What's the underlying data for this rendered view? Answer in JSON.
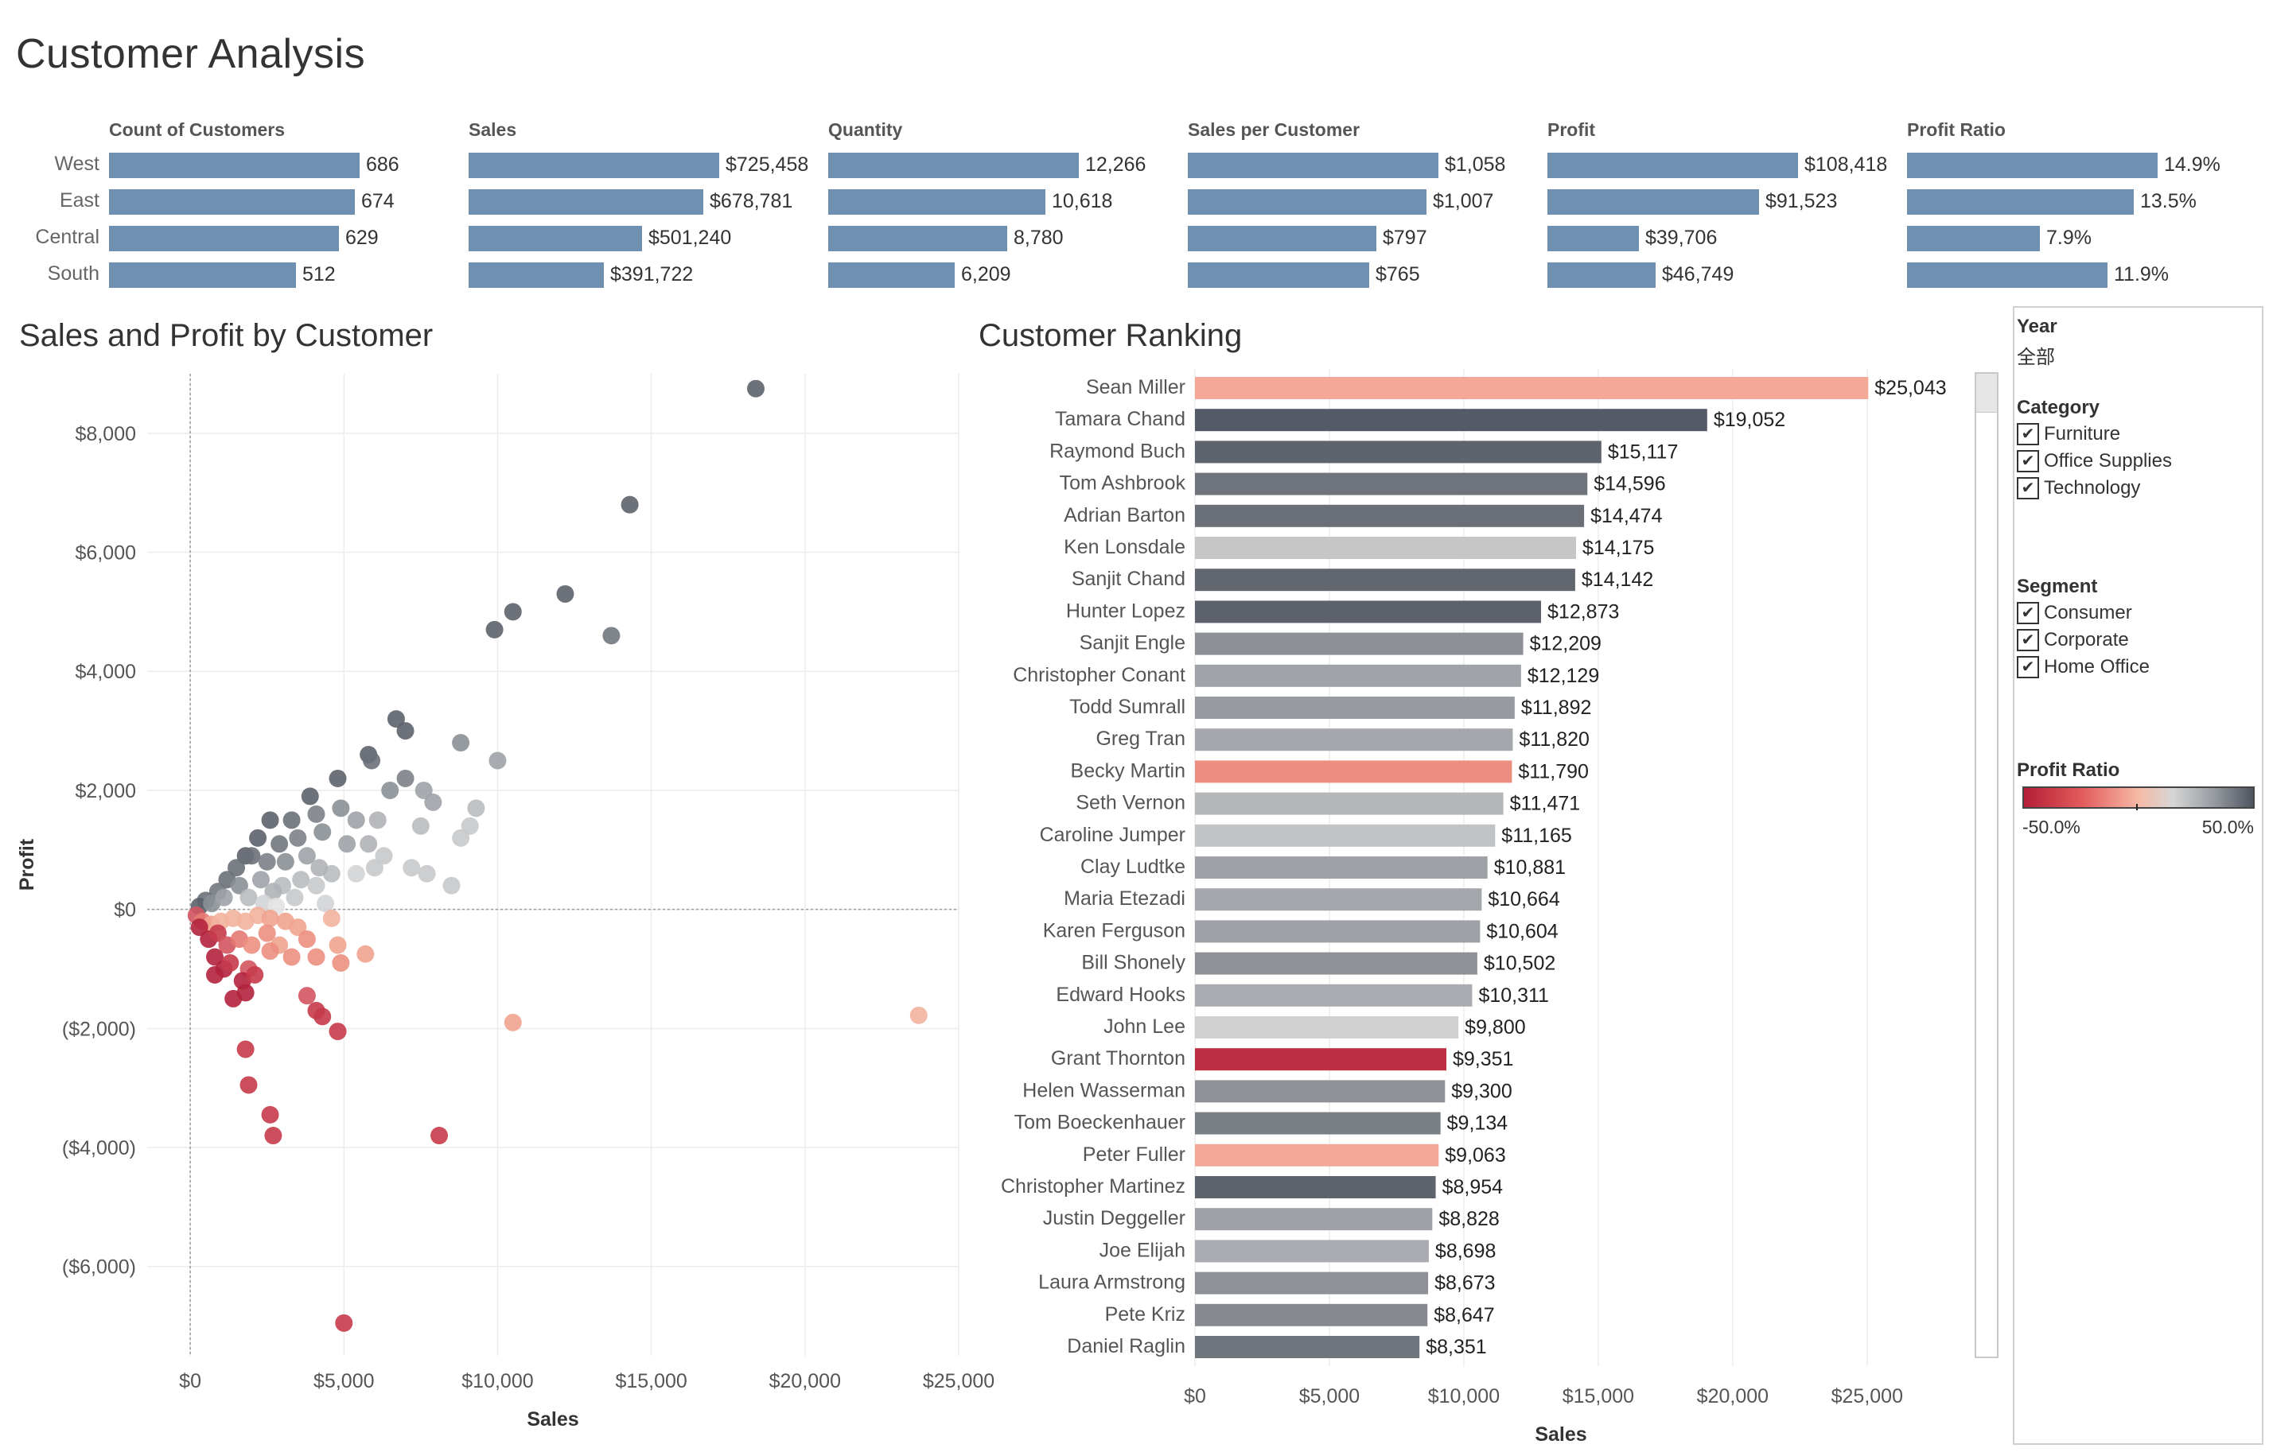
{
  "title": "Customer Analysis",
  "kpis": {
    "regions": [
      "West",
      "East",
      "Central",
      "South"
    ],
    "columns": [
      {
        "name": "Count of Customers",
        "values": [
          686,
          674,
          629,
          512
        ],
        "labels": [
          "686",
          "674",
          "629",
          "512"
        ]
      },
      {
        "name": "Sales",
        "values": [
          725458,
          678781,
          501240,
          391722
        ],
        "labels": [
          "$725,458",
          "$678,781",
          "$501,240",
          "$391,722"
        ]
      },
      {
        "name": "Quantity",
        "values": [
          12266,
          10618,
          8780,
          6209
        ],
        "labels": [
          "12,266",
          "10,618",
          "8,780",
          "6,209"
        ]
      },
      {
        "name": "Sales per Customer",
        "values": [
          1058,
          1007,
          797,
          765
        ],
        "labels": [
          "$1,058",
          "$1,007",
          "$797",
          "$765"
        ]
      },
      {
        "name": "Profit",
        "values": [
          108418,
          91523,
          39706,
          46749
        ],
        "labels": [
          "$108,418",
          "$91,523",
          "$39,706",
          "$46,749"
        ]
      },
      {
        "name": "Profit Ratio",
        "values": [
          14.9,
          13.5,
          7.9,
          11.9
        ],
        "labels": [
          "14.9%",
          "13.5%",
          "7.9%",
          "11.9%"
        ]
      }
    ],
    "bar_color": "#7090b2"
  },
  "scatter": {
    "title": "Sales and Profit by Customer",
    "xlabel": "Sales",
    "ylabel": "Profit",
    "x_ticks": [
      "$0",
      "$5,000",
      "$10,000",
      "$15,000",
      "$20,000",
      "$25,000"
    ],
    "y_ticks": [
      "$8,000",
      "$6,000",
      "$4,000",
      "$2,000",
      "$0",
      "($2,000)",
      "($4,000)",
      "($6,000)"
    ]
  },
  "ranking": {
    "title": "Customer Ranking",
    "xlabel": "Sales",
    "x_ticks": [
      "$0",
      "$5,000",
      "$10,000",
      "$15,000",
      "$20,000",
      "$25,000"
    ]
  },
  "filters": {
    "year": {
      "label": "Year",
      "value": "全部"
    },
    "category": {
      "label": "Category",
      "options": [
        "Furniture",
        "Office Supplies",
        "Technology"
      ]
    },
    "segment": {
      "label": "Segment",
      "options": [
        "Consumer",
        "Corporate",
        "Home Office"
      ]
    },
    "legend": {
      "label": "Profit Ratio",
      "min": "-50.0%",
      "max": "50.0%"
    }
  },
  "chart_data": [
    {
      "type": "scatter",
      "title": "Sales and Profit by Customer",
      "xlabel": "Sales",
      "ylabel": "Profit",
      "xlim": [
        -1400,
        25000
      ],
      "ylim": [
        -7500,
        9000
      ],
      "color_encoding": "Profit Ratio (-50% to 50%)",
      "points": [
        {
          "x": 18400,
          "y": 8750,
          "c": "#5c626b"
        },
        {
          "x": 14300,
          "y": 6800,
          "c": "#5c626b"
        },
        {
          "x": 10500,
          "y": 5000,
          "c": "#5c626b"
        },
        {
          "x": 12200,
          "y": 5300,
          "c": "#5c626b"
        },
        {
          "x": 9900,
          "y": 4700,
          "c": "#5c626b"
        },
        {
          "x": 13700,
          "y": 4600,
          "c": "#727880"
        },
        {
          "x": 6700,
          "y": 3200,
          "c": "#5c626b"
        },
        {
          "x": 7000,
          "y": 3000,
          "c": "#5c626b"
        },
        {
          "x": 8800,
          "y": 2800,
          "c": "#8b9096"
        },
        {
          "x": 5800,
          "y": 2600,
          "c": "#5c626b"
        },
        {
          "x": 5900,
          "y": 2500,
          "c": "#6b7078"
        },
        {
          "x": 10000,
          "y": 2500,
          "c": "#9fa3a8"
        },
        {
          "x": 4800,
          "y": 2200,
          "c": "#5c626b"
        },
        {
          "x": 7000,
          "y": 2200,
          "c": "#7d8288"
        },
        {
          "x": 6500,
          "y": 2000,
          "c": "#8b9096"
        },
        {
          "x": 7600,
          "y": 2000,
          "c": "#9fa3a8"
        },
        {
          "x": 7900,
          "y": 1800,
          "c": "#9fa3a8"
        },
        {
          "x": 9300,
          "y": 1700,
          "c": "#b9bcbf"
        },
        {
          "x": 3900,
          "y": 1900,
          "c": "#5c626b"
        },
        {
          "x": 2600,
          "y": 1500,
          "c": "#5c626b"
        },
        {
          "x": 3300,
          "y": 1500,
          "c": "#6b7078"
        },
        {
          "x": 4100,
          "y": 1600,
          "c": "#7d8288"
        },
        {
          "x": 4900,
          "y": 1700,
          "c": "#8b9096"
        },
        {
          "x": 5400,
          "y": 1500,
          "c": "#9fa3a8"
        },
        {
          "x": 6100,
          "y": 1500,
          "c": "#b0b3b7"
        },
        {
          "x": 7500,
          "y": 1400,
          "c": "#b9bcbf"
        },
        {
          "x": 9100,
          "y": 1400,
          "c": "#c7c9cb"
        },
        {
          "x": 8800,
          "y": 1200,
          "c": "#c7c9cb"
        },
        {
          "x": 2200,
          "y": 1200,
          "c": "#5c626b"
        },
        {
          "x": 2900,
          "y": 1100,
          "c": "#727880"
        },
        {
          "x": 3500,
          "y": 1200,
          "c": "#7d8288"
        },
        {
          "x": 4300,
          "y": 1300,
          "c": "#8b9096"
        },
        {
          "x": 5100,
          "y": 1100,
          "c": "#9fa3a8"
        },
        {
          "x": 5800,
          "y": 1100,
          "c": "#b0b3b7"
        },
        {
          "x": 6300,
          "y": 900,
          "c": "#c7c9cb"
        },
        {
          "x": 6000,
          "y": 700,
          "c": "#c7c9cb"
        },
        {
          "x": 7200,
          "y": 700,
          "c": "#c7c9cb"
        },
        {
          "x": 7700,
          "y": 600,
          "c": "#c7c9cb"
        },
        {
          "x": 8500,
          "y": 400,
          "c": "#c7c9cb"
        },
        {
          "x": 5400,
          "y": 600,
          "c": "#d3d4d6"
        },
        {
          "x": 4600,
          "y": 600,
          "c": "#b9bcbf"
        },
        {
          "x": 1800,
          "y": 900,
          "c": "#5c626b"
        },
        {
          "x": 2000,
          "y": 900,
          "c": "#6b7078"
        },
        {
          "x": 1500,
          "y": 700,
          "c": "#6b7078"
        },
        {
          "x": 2500,
          "y": 800,
          "c": "#7d8288"
        },
        {
          "x": 3100,
          "y": 800,
          "c": "#8b9096"
        },
        {
          "x": 3800,
          "y": 900,
          "c": "#9fa3a8"
        },
        {
          "x": 4200,
          "y": 700,
          "c": "#b0b3b7"
        },
        {
          "x": 3600,
          "y": 500,
          "c": "#b9bcbf"
        },
        {
          "x": 4100,
          "y": 400,
          "c": "#c7c9cb"
        },
        {
          "x": 3000,
          "y": 400,
          "c": "#b9bcbf"
        },
        {
          "x": 1200,
          "y": 500,
          "c": "#6b7078"
        },
        {
          "x": 900,
          "y": 300,
          "c": "#727880"
        },
        {
          "x": 1600,
          "y": 400,
          "c": "#8b9096"
        },
        {
          "x": 2300,
          "y": 500,
          "c": "#9fa3a8"
        },
        {
          "x": 2700,
          "y": 300,
          "c": "#b0b3b7"
        },
        {
          "x": 3400,
          "y": 200,
          "c": "#c7c9cb"
        },
        {
          "x": 500,
          "y": 150,
          "c": "#6b7078"
        },
        {
          "x": 300,
          "y": 50,
          "c": "#5c626b"
        },
        {
          "x": 700,
          "y": 100,
          "c": "#8b9096"
        },
        {
          "x": 1100,
          "y": 200,
          "c": "#9fa3a8"
        },
        {
          "x": 1900,
          "y": 200,
          "c": "#b9bcbf"
        },
        {
          "x": 2400,
          "y": 100,
          "c": "#d3d4d6"
        },
        {
          "x": 4400,
          "y": 100,
          "c": "#d3d4d6"
        },
        {
          "x": 2800,
          "y": 50,
          "c": "#e3e3e3"
        },
        {
          "x": 200,
          "y": -100,
          "c": "#d35561"
        },
        {
          "x": 400,
          "y": -200,
          "c": "#e47a73"
        },
        {
          "x": 700,
          "y": -250,
          "c": "#f0a48f"
        },
        {
          "x": 1000,
          "y": -200,
          "c": "#f3b29f"
        },
        {
          "x": 1400,
          "y": -150,
          "c": "#f3b29f"
        },
        {
          "x": 1800,
          "y": -200,
          "c": "#f3b29f"
        },
        {
          "x": 2200,
          "y": -100,
          "c": "#f3b29f"
        },
        {
          "x": 2600,
          "y": -150,
          "c": "#f0a48f"
        },
        {
          "x": 3100,
          "y": -200,
          "c": "#f0a48f"
        },
        {
          "x": 3500,
          "y": -300,
          "c": "#f0a48f"
        },
        {
          "x": 4600,
          "y": -150,
          "c": "#f3b29f"
        },
        {
          "x": 300,
          "y": -300,
          "c": "#b2233d"
        },
        {
          "x": 600,
          "y": -500,
          "c": "#b2233d"
        },
        {
          "x": 900,
          "y": -400,
          "c": "#c73b4b"
        },
        {
          "x": 1200,
          "y": -600,
          "c": "#d35561"
        },
        {
          "x": 1600,
          "y": -500,
          "c": "#e47a73"
        },
        {
          "x": 2000,
          "y": -600,
          "c": "#ec8f80"
        },
        {
          "x": 2500,
          "y": -400,
          "c": "#ec8f80"
        },
        {
          "x": 2900,
          "y": -600,
          "c": "#f0a48f"
        },
        {
          "x": 3800,
          "y": -500,
          "c": "#ec8f80"
        },
        {
          "x": 4800,
          "y": -600,
          "c": "#f0a48f"
        },
        {
          "x": 800,
          "y": -800,
          "c": "#b2233d"
        },
        {
          "x": 1100,
          "y": -1000,
          "c": "#b2233d"
        },
        {
          "x": 1300,
          "y": -900,
          "c": "#c73b4b"
        },
        {
          "x": 1900,
          "y": -1000,
          "c": "#d35561"
        },
        {
          "x": 2600,
          "y": -700,
          "c": "#ec8f80"
        },
        {
          "x": 3300,
          "y": -800,
          "c": "#ec8f80"
        },
        {
          "x": 4100,
          "y": -800,
          "c": "#ec8f80"
        },
        {
          "x": 4900,
          "y": -900,
          "c": "#ec8f80"
        },
        {
          "x": 5700,
          "y": -750,
          "c": "#f0a48f"
        },
        {
          "x": 800,
          "y": -1100,
          "c": "#b2233d"
        },
        {
          "x": 1700,
          "y": -1200,
          "c": "#b2233d"
        },
        {
          "x": 2100,
          "y": -1100,
          "c": "#c73b4b"
        },
        {
          "x": 1400,
          "y": -1500,
          "c": "#b2233d"
        },
        {
          "x": 1800,
          "y": -1400,
          "c": "#b2233d"
        },
        {
          "x": 3800,
          "y": -1450,
          "c": "#d35561"
        },
        {
          "x": 4100,
          "y": -1700,
          "c": "#c73b4b"
        },
        {
          "x": 4300,
          "y": -1800,
          "c": "#c73b4b"
        },
        {
          "x": 4800,
          "y": -2050,
          "c": "#c73b4b"
        },
        {
          "x": 10500,
          "y": -1900,
          "c": "#f0a48f"
        },
        {
          "x": 23700,
          "y": -1780,
          "c": "#f3b29f"
        },
        {
          "x": 1800,
          "y": -2350,
          "c": "#c73b4b"
        },
        {
          "x": 1900,
          "y": -2950,
          "c": "#c73b4b"
        },
        {
          "x": 2600,
          "y": -3450,
          "c": "#c73b4b"
        },
        {
          "x": 2700,
          "y": -3800,
          "c": "#c73b4b"
        },
        {
          "x": 8100,
          "y": -3800,
          "c": "#c73b4b"
        },
        {
          "x": 5000,
          "y": -6950,
          "c": "#c73b4b"
        }
      ]
    },
    {
      "type": "bar",
      "title": "Customer Ranking",
      "xlabel": "Sales",
      "xlim": [
        0,
        29000
      ],
      "orientation": "horizontal",
      "categories": [
        "Sean Miller",
        "Tamara Chand",
        "Raymond Buch",
        "Tom Ashbrook",
        "Adrian Barton",
        "Ken Lonsdale",
        "Sanjit Chand",
        "Hunter Lopez",
        "Sanjit Engle",
        "Christopher Conant",
        "Todd Sumrall",
        "Greg Tran",
        "Becky Martin",
        "Seth Vernon",
        "Caroline Jumper",
        "Clay Ludtke",
        "Maria Etezadi",
        "Karen Ferguson",
        "Bill Shonely",
        "Edward Hooks",
        "John Lee",
        "Grant Thornton",
        "Helen Wasserman",
        "Tom Boeckenhauer",
        "Peter Fuller",
        "Christopher Martinez",
        "Justin Deggeller",
        "Joe Elijah",
        "Laura Armstrong",
        "Pete Kriz",
        "Daniel Raglin"
      ],
      "values": [
        25043,
        19052,
        15117,
        14596,
        14474,
        14175,
        14142,
        12873,
        12209,
        12129,
        11892,
        11820,
        11790,
        11471,
        11165,
        10881,
        10664,
        10604,
        10502,
        10311,
        9800,
        9351,
        9300,
        9134,
        9063,
        8954,
        8828,
        8698,
        8673,
        8647,
        8351
      ],
      "labels": [
        "$25,043",
        "$19,052",
        "$15,117",
        "$14,596",
        "$14,474",
        "$14,175",
        "$14,142",
        "$12,873",
        "$12,209",
        "$12,129",
        "$11,892",
        "$11,820",
        "$11,790",
        "$11,471",
        "$11,165",
        "$10,881",
        "$10,664",
        "$10,604",
        "$10,502",
        "$10,311",
        "$9,800",
        "$9,351",
        "$9,300",
        "$9,134",
        "$9,063",
        "$8,954",
        "$8,828",
        "$8,698",
        "$8,673",
        "$8,647",
        "$8,351"
      ],
      "colors": [
        "#f4a897",
        "#555b66",
        "#5e646e",
        "#6f747c",
        "#6b7078",
        "#c6c6c6",
        "#62676f",
        "#5c616b",
        "#8d9196",
        "#a0a3a7",
        "#989ba0",
        "#a4a7ab",
        "#ec8f80",
        "#b5b7ba",
        "#c2c3c5",
        "#9ea1a5",
        "#a3a6aa",
        "#9ea1a5",
        "#8e9297",
        "#a8abaf",
        "#d0d0d0",
        "#bd2f43",
        "#8e9297",
        "#7a7f86",
        "#f4a897",
        "#5e646e",
        "#9ea1a5",
        "#a8abaf",
        "#8e9297",
        "#868a90",
        "#70757d"
      ]
    }
  ]
}
